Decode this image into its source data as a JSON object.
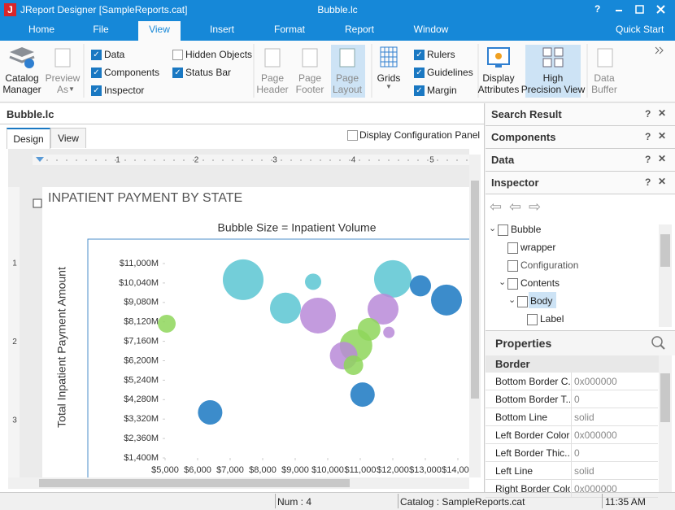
{
  "window": {
    "title": "JReport Designer [SampleReports.cat]",
    "document": "Bubble.lc",
    "help": "?"
  },
  "menu": {
    "tabs": [
      "Home",
      "File",
      "View",
      "Insert",
      "Format",
      "Report",
      "Window"
    ],
    "active": 2,
    "quick_start": "Quick Start"
  },
  "ribbon": {
    "catalog_manager": [
      "Catalog",
      "Manager"
    ],
    "preview_as": [
      "Preview",
      "As"
    ],
    "checks": [
      {
        "label": "Data",
        "checked": true
      },
      {
        "label": "Components",
        "checked": true
      },
      {
        "label": "Inspector",
        "checked": true
      },
      {
        "label": "Hidden Objects",
        "checked": false
      },
      {
        "label": "Status Bar",
        "checked": true
      }
    ],
    "page_header": [
      "Page",
      "Header"
    ],
    "page_footer": [
      "Page",
      "Footer"
    ],
    "page_layout": [
      "Page",
      "Layout"
    ],
    "grids": [
      "Grids"
    ],
    "view_checks": [
      {
        "label": "Rulers",
        "checked": true
      },
      {
        "label": "Guidelines",
        "checked": true
      },
      {
        "label": "Margin",
        "checked": true
      }
    ],
    "display_attributes": [
      "Display",
      "Attributes"
    ],
    "high_precision_view": [
      "High",
      "Precision View"
    ],
    "data_buffer": [
      "Data",
      "Buffer"
    ]
  },
  "editor": {
    "title": "Bubble.lc",
    "tabs": [
      "Design",
      "View"
    ],
    "display_configuration_panel": "Display Configuration Panel",
    "ruler_h": [
      1,
      2,
      3,
      4,
      5
    ],
    "ruler_v": [
      1,
      2,
      3
    ],
    "report_title": "INPATIENT PAYMENT BY STATE"
  },
  "chart_data": {
    "type": "bubble",
    "title": "Bubble Size = Inpatient Volume",
    "y_label": "Total Inpatient Payment Amount",
    "x": [
      7400,
      8700,
      9550,
      9700,
      12000,
      12850,
      13650,
      11700,
      11880,
      5050,
      11270,
      10870,
      10490,
      10790,
      11070,
      6385
    ],
    "values": [
      10200,
      8800,
      10100,
      8430,
      10240,
      9900,
      9200,
      8750,
      7600,
      8030,
      7750,
      6950,
      6450,
      5980,
      4530,
      3650
    ],
    "sizes": [
      625,
      361,
      100,
      484,
      529,
      169,
      361,
      361,
      49,
      121,
      196,
      400,
      289,
      144,
      225,
      225
    ],
    "colors": [
      "#5bc6d2",
      "#5bc6d2",
      "#5bc6d2",
      "#b98ad8",
      "#5bc6d2",
      "#1a78c2",
      "#1a78c2",
      "#b98ad8",
      "#b98ad8",
      "#8ed65a",
      "#8ed65a",
      "#8ed65a",
      "#b98ad8",
      "#8ed65a",
      "#1a78c2",
      "#1a78c2"
    ],
    "xlim": [
      5000,
      14000
    ],
    "xticks": [
      {
        "value": 5000,
        "label": "$5,000"
      },
      {
        "value": 6000,
        "label": "$6,000"
      },
      {
        "value": 7000,
        "label": "$7,000"
      },
      {
        "value": 8000,
        "label": "$8,000"
      },
      {
        "value": 9000,
        "label": "$9,000"
      },
      {
        "value": 10000,
        "label": "$10,000"
      },
      {
        "value": 11000,
        "label": "$11,000"
      },
      {
        "value": 12000,
        "label": "$12,000"
      },
      {
        "value": 13000,
        "label": "$13,000"
      },
      {
        "value": 14000,
        "label": "$14,000"
      }
    ],
    "ylim": [
      1400,
      11000
    ],
    "yticks": [
      {
        "value": 1400,
        "label": "$1,400M"
      },
      {
        "value": 2360,
        "label": "$2,360M"
      },
      {
        "value": 3320,
        "label": "$3,320M"
      },
      {
        "value": 4280,
        "label": "$4,280M"
      },
      {
        "value": 5240,
        "label": "$5,240M"
      },
      {
        "value": 6200,
        "label": "$6,200M"
      },
      {
        "value": 7160,
        "label": "$7,160M"
      },
      {
        "value": 8120,
        "label": "$8,120M"
      },
      {
        "value": 9080,
        "label": "$9,080M"
      },
      {
        "value": 10040,
        "label": "$10,040M"
      },
      {
        "value": 11000,
        "label": "$11,000M"
      }
    ],
    "grid": false
  },
  "panels": {
    "docked": [
      "Search Result",
      "Components",
      "Data",
      "Inspector"
    ],
    "tree": [
      {
        "label": "Bubble",
        "level": 0
      },
      {
        "label": "wrapper",
        "level": 1
      },
      {
        "label": "Configuration",
        "level": 1
      },
      {
        "label": "Contents",
        "level": 1
      },
      {
        "label": "Body",
        "level": 2
      },
      {
        "label": "Label",
        "level": 3
      }
    ],
    "selected": 4,
    "properties": "Properties",
    "group": "Border",
    "rows": [
      [
        "Bottom Border C...",
        "0x000000"
      ],
      [
        "Bottom Border T...",
        "0"
      ],
      [
        "Bottom Line",
        "solid"
      ],
      [
        "Left Border Color",
        "0x000000"
      ],
      [
        "Left Border Thic...",
        "0"
      ],
      [
        "Left Line",
        "solid"
      ],
      [
        "Right Border Color",
        "0x000000"
      ]
    ]
  },
  "status": {
    "num": "Num : 4",
    "catalog": "Catalog : SampleReports.cat",
    "time": "11:35 AM"
  }
}
